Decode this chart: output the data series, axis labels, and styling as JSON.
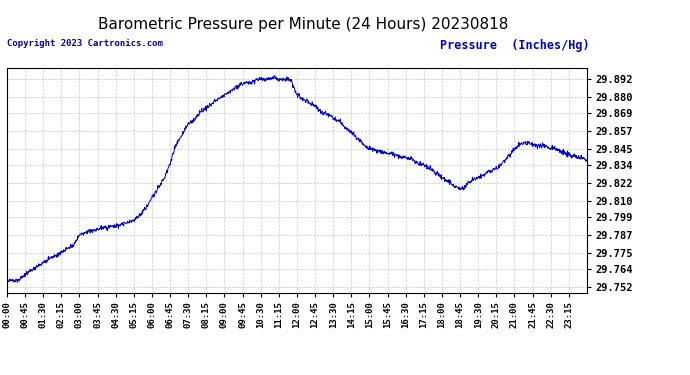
{
  "title": "Barometric Pressure per Minute (24 Hours) 20230818",
  "copyright": "Copyright 2023 Cartronics.com",
  "ylabel": "Pressure  (Inches/Hg)",
  "line_color": "#0000CC",
  "ylabel_color": "#0000CC",
  "copyright_color": "#0000AA",
  "background_color": "#ffffff",
  "grid_color": "#c8c8c8",
  "yticks": [
    29.752,
    29.764,
    29.775,
    29.787,
    29.799,
    29.81,
    29.822,
    29.834,
    29.845,
    29.857,
    29.869,
    29.88,
    29.892
  ],
  "xtick_labels": [
    "00:00",
    "00:45",
    "01:30",
    "02:15",
    "03:00",
    "03:45",
    "04:30",
    "05:15",
    "06:00",
    "06:45",
    "07:30",
    "08:15",
    "09:00",
    "09:45",
    "10:30",
    "11:15",
    "12:00",
    "12:45",
    "13:30",
    "14:15",
    "15:00",
    "15:45",
    "16:30",
    "17:15",
    "18:00",
    "18:45",
    "19:30",
    "20:15",
    "21:00",
    "21:45",
    "22:30",
    "23:15"
  ],
  "xmin": 0,
  "xmax": 1439,
  "ymin": 29.748,
  "ymax": 29.9
}
